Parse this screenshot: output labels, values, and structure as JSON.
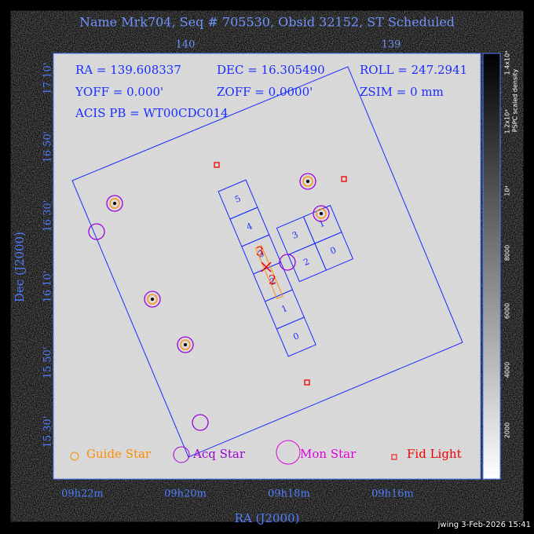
{
  "title": "Name Mrk704, Seq # 705530, Obsid 32152, ST Scheduled",
  "top_axis": {
    "ticks": [
      "140",
      "139"
    ]
  },
  "info": [
    "RA = 139.608337",
    "DEC = 16.305490",
    "ROLL = 247.2941",
    "YOFF = 0.000'",
    "ZOFF = 0.0000'",
    "ZSIM = 0 mm",
    "ACIS PB = WT00CDC014"
  ],
  "chips": {
    "strip": [
      "5",
      "4",
      "3",
      "2",
      "1",
      "0"
    ],
    "array": [
      "3",
      "1",
      "2",
      "0"
    ],
    "red": [
      "3",
      "2"
    ]
  },
  "legend": [
    "Guide Star",
    "Acq Star",
    "Mon Star",
    "Fid Light"
  ],
  "y_axis": {
    "label": "Dec (J2000)",
    "ticks": [
      "17 10'",
      "16 50'",
      "16 30'",
      "16 10'",
      "15 50'",
      "15 30'"
    ]
  },
  "x_axis": {
    "label": "RA (J2000)",
    "ticks": [
      "09h22m",
      "09h20m",
      "09h18m",
      "09h16m"
    ]
  },
  "colorbar": {
    "label": "PSPC scaled density",
    "ticks": [
      "1.4x10⁴",
      "1.2x10⁴",
      "10⁴",
      "8000",
      "6000",
      "4000",
      "2000"
    ]
  },
  "footer": "jwing  3-Feb-2026 15:41"
}
